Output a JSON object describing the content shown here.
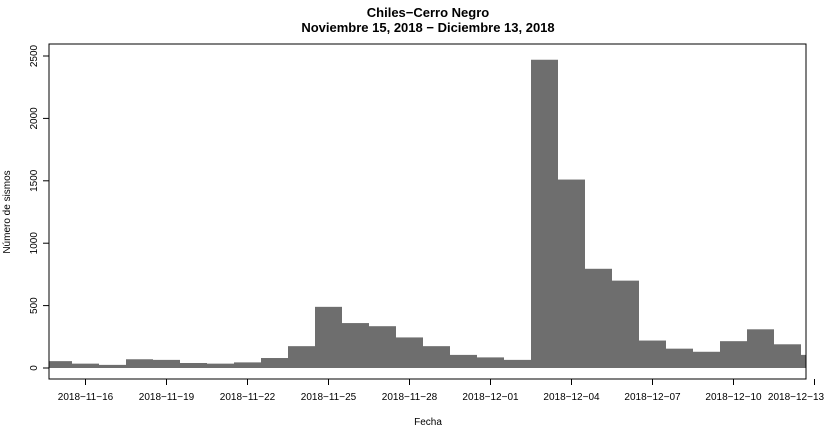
{
  "chart_data": {
    "type": "bar",
    "title": "Chiles−Cerro Negro",
    "subtitle": "Noviembre 15, 2018 − Diciembre 13, 2018",
    "xlabel": "Fecha",
    "ylabel": "Número de sismos",
    "ylim": [
      0,
      2500
    ],
    "yticks": [
      0,
      500,
      1000,
      1500,
      2000,
      2500
    ],
    "xlim": [
      "2018-11-15",
      "2018-12-13"
    ],
    "xticks": [
      "2018-11-16",
      "2018-11-19",
      "2018-11-22",
      "2018-11-25",
      "2018-11-28",
      "2018-12-01",
      "2018-12-04",
      "2018-12-07",
      "2018-12-10",
      "2018-12-13"
    ],
    "categories": [
      "2018-11-15",
      "2018-11-16",
      "2018-11-17",
      "2018-11-18",
      "2018-11-19",
      "2018-11-20",
      "2018-11-21",
      "2018-11-22",
      "2018-11-23",
      "2018-11-24",
      "2018-11-25",
      "2018-11-26",
      "2018-11-27",
      "2018-11-28",
      "2018-11-29",
      "2018-11-30",
      "2018-12-01",
      "2018-12-02",
      "2018-12-03",
      "2018-12-04",
      "2018-12-05",
      "2018-12-06",
      "2018-12-07",
      "2018-12-08",
      "2018-12-09",
      "2018-12-10",
      "2018-12-11",
      "2018-12-12",
      "2018-12-13"
    ],
    "values": [
      55,
      35,
      25,
      70,
      65,
      40,
      35,
      45,
      80,
      175,
      490,
      360,
      335,
      245,
      175,
      105,
      85,
      65,
      2470,
      1510,
      795,
      700,
      220,
      155,
      130,
      215,
      310,
      190,
      105
    ],
    "bar_color": "#6e6e6e",
    "grid": false,
    "legend": "none"
  }
}
